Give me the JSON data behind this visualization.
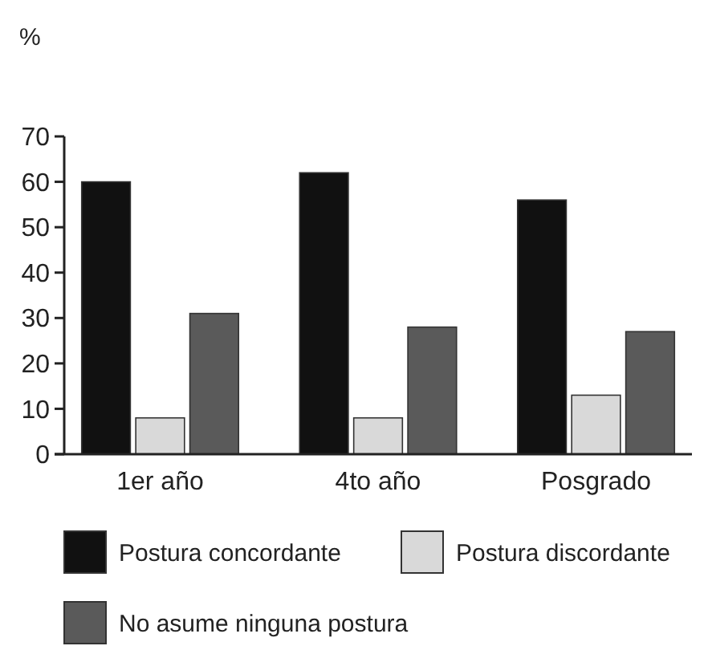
{
  "chart_data": {
    "type": "bar",
    "ylabel": "%",
    "categories": [
      "1er año",
      "4to año",
      "Posgrado"
    ],
    "series": [
      {
        "name": "Postura concordante",
        "color": "#111111",
        "values": [
          60,
          62,
          56
        ]
      },
      {
        "name": "Postura discordante",
        "color": "#d9d9d9",
        "values": [
          8,
          8,
          13
        ]
      },
      {
        "name": "No asume ninguna postura",
        "color": "#5a5a5a",
        "values": [
          31,
          28,
          27
        ]
      }
    ],
    "ylim": [
      0,
      70
    ],
    "yticks": [
      0,
      10,
      20,
      30,
      40,
      50,
      60,
      70
    ],
    "legend": "bottom",
    "grid": false
  }
}
